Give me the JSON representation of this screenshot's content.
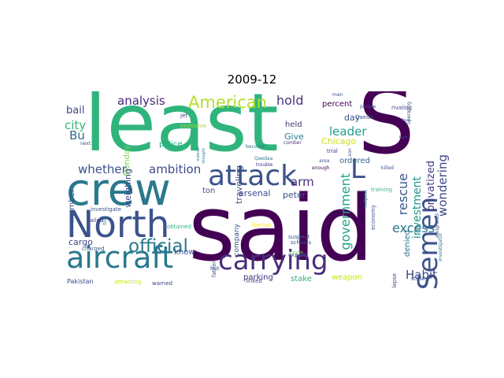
{
  "title": "2009-12",
  "words": [
    {
      "text": "least",
      "color": "#2fb47c"
    },
    {
      "text": "said",
      "color": "#440154"
    },
    {
      "text": "S",
      "color": "#440154"
    },
    {
      "text": "crew",
      "color": "#2a788e"
    },
    {
      "text": "North",
      "color": "#3b528b"
    },
    {
      "text": "aircraft",
      "color": "#2a788e"
    },
    {
      "text": "attack",
      "color": "#3b528b"
    },
    {
      "text": "carrying",
      "color": "#472d7b"
    },
    {
      "text": "Semen",
      "color": "#3b528b"
    },
    {
      "text": "official",
      "color": "#2a788e"
    },
    {
      "text": "American",
      "color": "#b5de2b"
    },
    {
      "text": "analysis",
      "color": "#482878"
    },
    {
      "text": "hold",
      "color": "#46327e"
    },
    {
      "text": "L",
      "color": "#3b528b"
    },
    {
      "text": "city",
      "color": "#35b779"
    },
    {
      "text": "Bu",
      "color": "#31688e"
    },
    {
      "text": "whether",
      "color": "#3b528b"
    },
    {
      "text": "ambition",
      "color": "#3e4989"
    },
    {
      "text": "arm",
      "color": "#472d7b"
    },
    {
      "text": "leader",
      "color": "#1f9e89"
    },
    {
      "text": "government",
      "color": "#20a486"
    },
    {
      "text": "rescue",
      "color": "#39558c"
    },
    {
      "text": "investment",
      "color": "#1f968b"
    },
    {
      "text": "privatized",
      "color": "#443983"
    },
    {
      "text": "wondering",
      "color": "#404688"
    },
    {
      "text": "excess",
      "color": "#2c728e"
    },
    {
      "text": "Habit",
      "color": "#3e4989"
    },
    {
      "text": "bail",
      "color": "#404688"
    },
    {
      "text": "member",
      "color": "#3b528b"
    },
    {
      "text": "Monday",
      "color": "#7ad151"
    },
    {
      "text": "weighing",
      "color": "#3e4989"
    },
    {
      "text": "traveling",
      "color": "#3b528b"
    },
    {
      "text": "Give",
      "color": "#277f8e"
    },
    {
      "text": "held",
      "color": "#46327e"
    },
    {
      "text": "percent",
      "color": "#440154"
    },
    {
      "text": "day",
      "color": "#3b528b"
    },
    {
      "text": "Chicago",
      "color": "#cde11d"
    },
    {
      "text": "ordered",
      "color": "#31688e"
    },
    {
      "text": "denied",
      "color": "#2c728e"
    },
    {
      "text": "peter",
      "color": "#39568c"
    },
    {
      "text": "arsenal",
      "color": "#3e4989"
    },
    {
      "text": "ton",
      "color": "#3b528b"
    },
    {
      "text": "police",
      "color": "#22a884"
    },
    {
      "text": "know",
      "color": "#3b528b"
    },
    {
      "text": "company",
      "color": "#3b528b"
    },
    {
      "text": "parking",
      "color": "#46327e"
    },
    {
      "text": "stake",
      "color": "#2fb47c"
    },
    {
      "text": "weapon",
      "color": "#c8e020"
    },
    {
      "text": "cargo",
      "color": "#404688"
    },
    {
      "text": "explosive",
      "color": "#9dd93b"
    },
    {
      "text": "jet",
      "color": "#46327e"
    },
    {
      "text": "become",
      "color": "#2a788e"
    },
    {
      "text": "comber",
      "color": "#46327e"
    },
    {
      "text": "trial",
      "color": "#443983"
    },
    {
      "text": "son",
      "color": "#3b528b"
    },
    {
      "text": "Qaedaa",
      "color": "#2a788e"
    },
    {
      "text": "area",
      "color": "#3b528b"
    },
    {
      "text": "enough",
      "color": "#440154"
    },
    {
      "text": "trouble",
      "color": "#46327e"
    },
    {
      "text": "outside",
      "color": "#2a788e"
    },
    {
      "text": "thought",
      "color": "#2a788e"
    },
    {
      "text": "obtained",
      "color": "#2fb47c"
    },
    {
      "text": "failed",
      "color": "#3e4989"
    },
    {
      "text": "told",
      "color": "#2a788e"
    },
    {
      "text": "next",
      "color": "#3b528b"
    },
    {
      "text": "investigate",
      "color": "#3b528b"
    },
    {
      "text": "charged",
      "color": "#3b528b"
    },
    {
      "text": "Pakistan",
      "color": "#3e4989"
    },
    {
      "text": "attracting",
      "color": "#c8e020"
    },
    {
      "text": "warned",
      "color": "#3e4989"
    },
    {
      "text": "father",
      "color": "#3b528b"
    },
    {
      "text": "hut",
      "color": "#3b528b"
    },
    {
      "text": "linked",
      "color": "#3b528b"
    },
    {
      "text": "Iberian",
      "color": "#fde725"
    },
    {
      "text": "suspect",
      "color": "#3b528b"
    },
    {
      "text": "schools",
      "color": "#3b528b"
    },
    {
      "text": "expert",
      "color": "#3b528b"
    },
    {
      "text": "survive",
      "color": "#7ad151"
    },
    {
      "text": "economy",
      "color": "#3b528b"
    },
    {
      "text": "outpost",
      "color": "#2a788e"
    },
    {
      "text": "collapse",
      "color": "#3e4989"
    },
    {
      "text": "training",
      "color": "#35b779"
    },
    {
      "text": "killed",
      "color": "#3b528b"
    },
    {
      "text": "emigrated",
      "color": "#3b528b"
    },
    {
      "text": "investigator",
      "color": "#2a788e"
    },
    {
      "text": "student",
      "color": "#3b528b"
    },
    {
      "text": "man",
      "color": "#3b528b"
    },
    {
      "text": "people",
      "color": "#3b528b"
    },
    {
      "text": "rivaling",
      "color": "#3e4989"
    },
    {
      "text": "Qaeda",
      "color": "#3b528b"
    },
    {
      "text": "operating",
      "color": "#3b528b"
    },
    {
      "text": "bus",
      "color": "#3b528b"
    },
    {
      "text": "hurt",
      "color": "#3b528b"
    }
  ]
}
